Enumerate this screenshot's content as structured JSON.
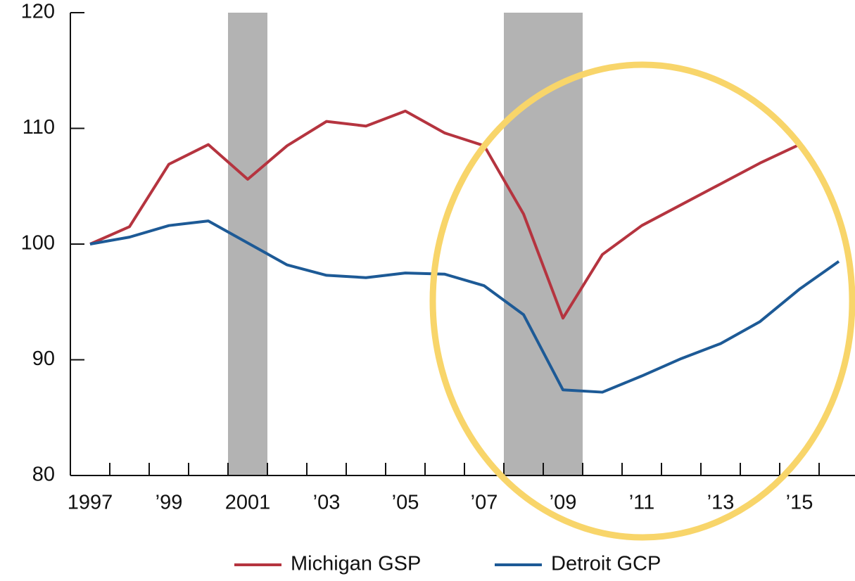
{
  "chart_data": {
    "type": "line",
    "x": [
      1997,
      1998,
      1999,
      2000,
      2001,
      2002,
      2003,
      2004,
      2005,
      2006,
      2007,
      2008,
      2009,
      2010,
      2011,
      2012,
      2013,
      2014,
      2015,
      2016
    ],
    "series": [
      {
        "name": "Michigan GSP",
        "color": "#b5343f",
        "values": [
          100,
          101.5,
          106.9,
          108.6,
          105.6,
          108.5,
          110.6,
          110.2,
          111.5,
          109.6,
          108.5,
          102.6,
          93.6,
          99.1,
          101.6,
          103.4,
          105.2,
          107.0,
          108.6,
          null
        ]
      },
      {
        "name": "Detroit GCP",
        "color": "#1d5a96",
        "values": [
          100,
          100.6,
          101.6,
          102.0,
          100.1,
          98.2,
          97.3,
          97.1,
          97.5,
          97.4,
          96.4,
          93.9,
          87.4,
          87.2,
          88.6,
          90.1,
          91.4,
          93.3,
          96.1,
          98.5
        ]
      }
    ],
    "xlim": [
      1996.5,
      2016.5
    ],
    "ylim": [
      80,
      120
    ],
    "yticks": [
      80,
      90,
      100,
      110,
      120
    ],
    "xticks": [
      1997,
      {
        "value": 1999,
        "label": "’99"
      },
      2001,
      {
        "value": 2003,
        "label": "’03"
      },
      {
        "value": 2005,
        "label": "’05"
      },
      {
        "value": 2007,
        "label": "’07"
      },
      {
        "value": 2009,
        "label": "’09"
      },
      {
        "value": 2011,
        "label": "’11"
      },
      {
        "value": 2013,
        "label": "’13"
      },
      {
        "value": 2015,
        "label": "’15"
      }
    ],
    "minor_xticks": [
      1997.5,
      1998.5,
      1999.5,
      2000.5,
      2001.5,
      2002.5,
      2003.5,
      2004.5,
      2005.5,
      2006.5,
      2007.5,
      2008.5,
      2009.5,
      2010.5,
      2011.5,
      2012.5,
      2013.5,
      2014.5,
      2015.5
    ],
    "shaded_regions": [
      [
        2000.5,
        2001.5
      ],
      [
        2007.5,
        2009.5
      ]
    ],
    "shade_color": "#b3b3b3",
    "legend": "bottom"
  }
}
